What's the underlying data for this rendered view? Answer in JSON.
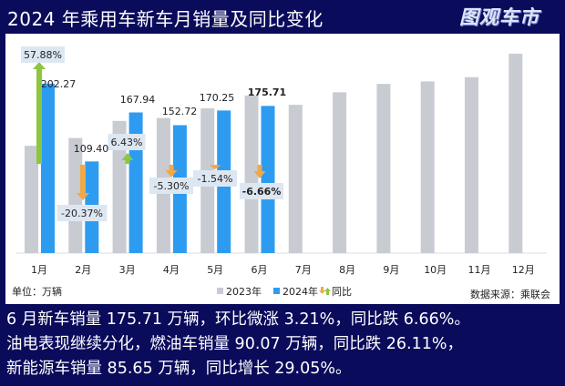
{
  "title": "2024 年乘用车新车月销量及同比变化",
  "logo": "图观车市",
  "chart_data": {
    "type": "bar",
    "categories": [
      "1月",
      "2月",
      "3月",
      "4月",
      "5月",
      "6月",
      "7月",
      "8月",
      "9月",
      "10月",
      "11月",
      "12月"
    ],
    "series": [
      {
        "name": "2023年",
        "color": "#c8cbd2",
        "values": [
          128.1,
          137.4,
          157.8,
          161.3,
          172.9,
          188.2,
          177,
          192,
          202,
          205,
          210,
          238
        ]
      },
      {
        "name": "2024年",
        "color": "#2d9cf0",
        "values": [
          202.27,
          109.4,
          167.94,
          152.72,
          170.25,
          175.71,
          null,
          null,
          null,
          null,
          null,
          null
        ]
      }
    ],
    "yoy": {
      "name": "同比",
      "values": [
        "57.88%",
        "-20.37%",
        "6.43%",
        "-5.30%",
        "-1.54%",
        "-6.66%"
      ],
      "up_color": "#8cc63f",
      "down_color": "#f0a848"
    },
    "value_labels": [
      "202.27",
      "109.40",
      "167.94",
      "152.72",
      "170.25",
      "175.71"
    ],
    "ylim": [
      0,
      250
    ],
    "unit": "单位：万辆",
    "source": "数据来源：乘联会",
    "legend_placement": "bottom-center"
  },
  "summary": [
    "6 月新车销量 175.71 万辆，环比微涨 3.21%，同比跌 6.66%。",
    "油电表现继续分化，燃油车销量 90.07 万辆，同比跌 26.11%，",
    "新能源车销量 85.65 万辆，同比增长 29.05%。"
  ]
}
